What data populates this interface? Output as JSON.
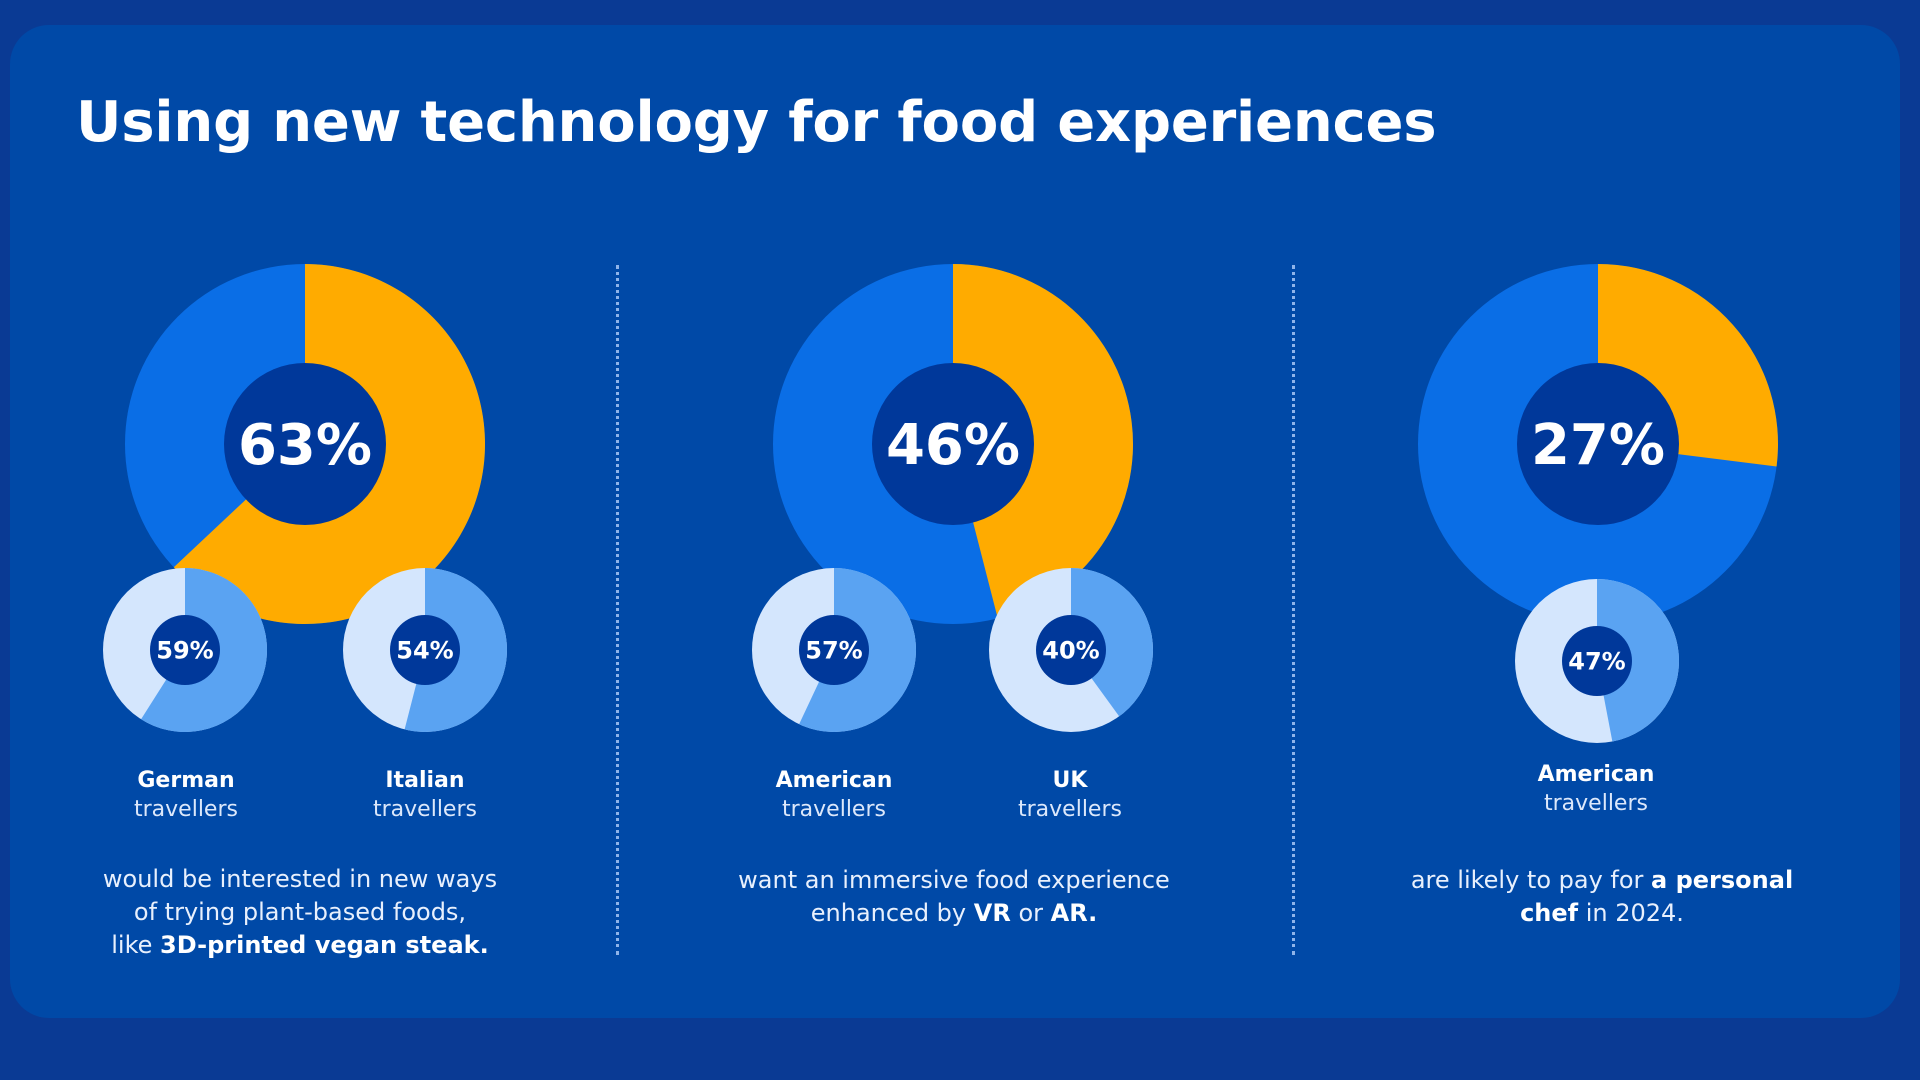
{
  "title": "Using new technology for food experiences",
  "colors": {
    "background_outer": "#0a3a94",
    "card": "#0049a7",
    "main_share": "#ffab00",
    "main_rest": "#0a6ee6",
    "center_hole": "#00389a",
    "small_share": "#5aa3f2",
    "small_rest": "#d4e6fd"
  },
  "chart_data": [
    {
      "type": "pie",
      "title": "",
      "main": {
        "value": 63,
        "label": "63%"
      },
      "sub": [
        {
          "value": 59,
          "label": "59%",
          "group_bold": "German",
          "group_rest": "travellers"
        },
        {
          "value": 54,
          "label": "54%",
          "group_bold": "Italian",
          "group_rest": "travellers"
        }
      ],
      "caption": {
        "line1": "would be interested in new ways",
        "line2": "of trying plant-based foods,",
        "line3_pre": "like ",
        "line3_bold": "3D-printed vegan steak."
      }
    },
    {
      "type": "pie",
      "title": "",
      "main": {
        "value": 46,
        "label": "46%"
      },
      "sub": [
        {
          "value": 57,
          "label": "57%",
          "group_bold": "American",
          "group_rest": "travellers"
        },
        {
          "value": 40,
          "label": "40%",
          "group_bold": "UK",
          "group_rest": "travellers"
        }
      ],
      "caption": {
        "line1": "want an immersive food experience",
        "line2_pre": "enhanced by ",
        "line2_bold1": "VR",
        "line2_mid": " or ",
        "line2_bold2": "AR."
      }
    },
    {
      "type": "pie",
      "title": "",
      "main": {
        "value": 27,
        "label": "27%"
      },
      "sub": [
        {
          "value": 47,
          "label": "47%",
          "group_bold": "American",
          "group_rest": "travellers"
        }
      ],
      "caption": {
        "line1_pre": "are likely to pay for ",
        "line1_bold": "a personal",
        "line2_bold": "chef",
        "line2_post": " in 2024."
      }
    }
  ]
}
